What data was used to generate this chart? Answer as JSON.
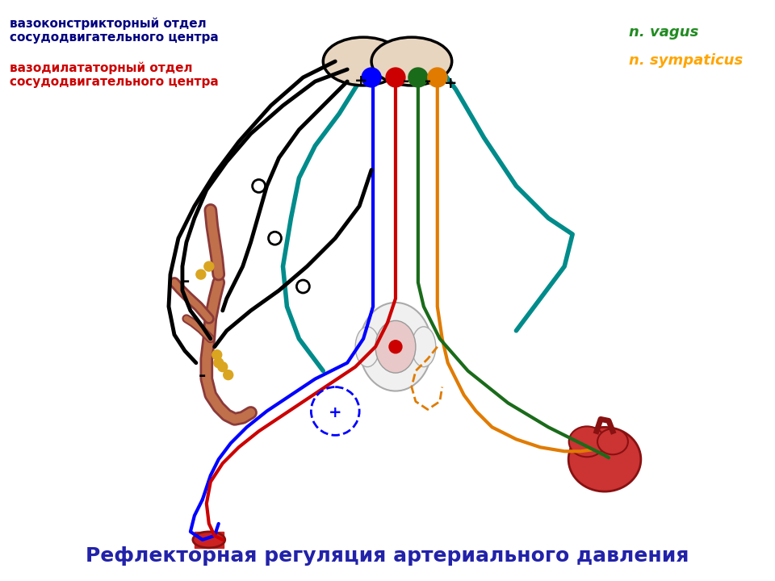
{
  "title": "Рефлекторная регуляция артериального давления",
  "title_color": "#2222aa",
  "title_fontsize": 18,
  "label_vazokonstriktor": "вазоконстрикторный отдел\nсосудодвигательного центра",
  "label_vazodilator": "вазодилататорный отдел\nсосудодвигательного центра",
  "label_vagus": "n. vagus",
  "label_sympaticus": "n. sympaticus",
  "label_vagus_color": "#228B22",
  "label_sympaticus_color": "#FFA500",
  "label_vazokonstriktor_color": "#000080",
  "label_vazodilator_color": "#cc0000",
  "bg_color": "#ffffff",
  "line_lw": 3.0
}
